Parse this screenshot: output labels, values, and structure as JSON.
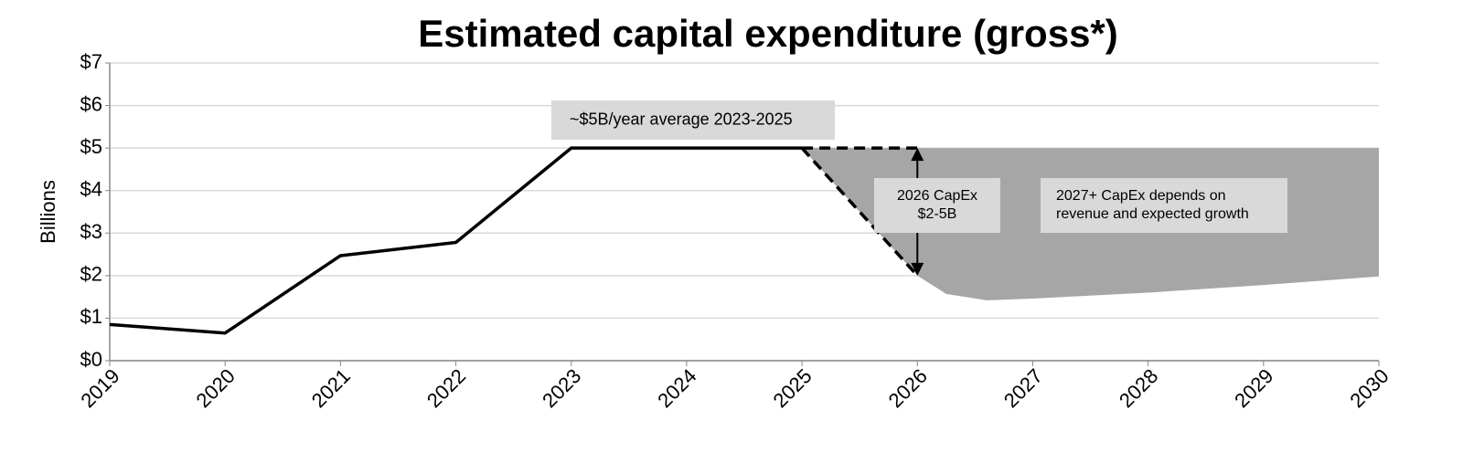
{
  "chart_data": {
    "type": "line",
    "title": "Estimated capital expenditure (gross*)",
    "y_label": "Billions",
    "x": [
      2019,
      2020,
      2021,
      2022,
      2023,
      2024,
      2025
    ],
    "values": [
      0.85,
      0.65,
      2.47,
      2.78,
      5.0,
      5.0,
      5.0
    ],
    "color": "#000000",
    "dashed_lines": [
      {
        "x": [
          2025,
          2026
        ],
        "values": [
          5,
          5
        ]
      },
      {
        "x": [
          2025,
          2026
        ],
        "values": [
          5,
          2
        ]
      }
    ],
    "range_area": {
      "x": [
        2025,
        2026,
        2026.25,
        2026.6,
        2027,
        2028,
        2029,
        2030
      ],
      "upper": [
        5,
        5,
        5,
        5,
        5,
        5,
        5,
        5
      ],
      "lower": [
        5,
        2,
        1.57,
        1.42,
        1.46,
        1.6,
        1.78,
        1.98
      ],
      "color": "#a6a6a6"
    },
    "annotations": [
      {
        "lines": [
          "~$5B/year average 2023-2025"
        ]
      },
      {
        "lines": [
          "2026 CapEx",
          "$2-5B"
        ]
      },
      {
        "lines": [
          "2027+ CapEx depends on",
          "revenue and expected growth"
        ]
      }
    ],
    "xlim": [
      2019,
      2030
    ],
    "xticks": [
      2019,
      2020,
      2021,
      2022,
      2023,
      2024,
      2025,
      2026,
      2027,
      2028,
      2029,
      2030
    ],
    "ylim": [
      0,
      7
    ],
    "yticks": [
      {
        "value": 0,
        "label": "$0"
      },
      {
        "value": 1,
        "label": "$1"
      },
      {
        "value": 2,
        "label": "$2"
      },
      {
        "value": 3,
        "label": "$3"
      },
      {
        "value": 4,
        "label": "$4"
      },
      {
        "value": 5,
        "label": "$5"
      },
      {
        "value": 6,
        "label": "$6"
      },
      {
        "value": 7,
        "label": "$7"
      }
    ],
    "grid": true
  }
}
